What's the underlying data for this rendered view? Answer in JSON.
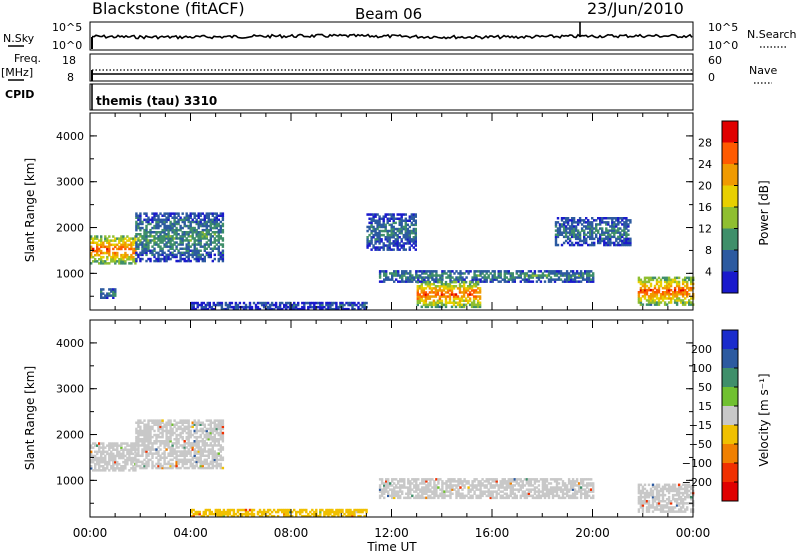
{
  "header": {
    "station": "Blackstone (fitACF)",
    "beam": "Beam 06",
    "date": "23/Jun/2010"
  },
  "status_panels": {
    "nsky_label": "N.Sky",
    "nsearch_label": "N.Search",
    "nsky_ticks": [
      "10^5",
      "10^0"
    ],
    "nsearch_ticks": [
      "10^5",
      "10^0"
    ],
    "freq_label": "Freq.",
    "freq_unit": "[MHz]",
    "freq_ticks": [
      "18",
      "8"
    ],
    "nave_label": "Nave",
    "nave_ticks": [
      "60",
      "0"
    ],
    "cpid_label": "CPID",
    "cpid_value": "themis (tau) 3310"
  },
  "power_colorbar": {
    "label": "Power [dB]",
    "ticks": [
      "28",
      "24",
      "20",
      "16",
      "12",
      "8",
      "4"
    ],
    "colors": [
      "#e00000",
      "#ff5a00",
      "#f09a00",
      "#e8d000",
      "#8fbf30",
      "#3f8f6a",
      "#2c5aa0",
      "#1a1acc"
    ]
  },
  "velocity_colorbar": {
    "label": "Velocity [m s⁻¹]",
    "ticks": [
      "200",
      "100",
      "50",
      "15",
      "−15",
      "−50",
      "−100",
      "−200"
    ],
    "colors": [
      "#1a2ccc",
      "#2c5aa0",
      "#3f8f6a",
      "#70c030",
      "#c8c8c8",
      "#f0c000",
      "#f08000",
      "#f03000",
      "#e00000"
    ]
  },
  "axes": {
    "ylabel": "Slant Range [km]",
    "yticks": [
      "4000",
      "3000",
      "2000",
      "1000"
    ],
    "xlabel": "Time UT",
    "xticks": [
      "00:00",
      "04:00",
      "08:00",
      "12:00",
      "16:00",
      "20:00",
      "00:00"
    ]
  },
  "chart_data": [
    {
      "type": "heatmap",
      "title": "Power",
      "xlabel": "Time UT",
      "ylabel": "Slant Range [km]",
      "xlim_hours": [
        0,
        24
      ],
      "ylim_km": [
        200,
        4500
      ],
      "colorbar_label": "Power [dB]",
      "colorbar_range": [
        0,
        31
      ],
      "echo_regions": [
        {
          "t_start": 0.0,
          "t_end": 1.8,
          "range_low": 1200,
          "range_high": 1800,
          "core_power_db": 26
        },
        {
          "t_start": 1.8,
          "t_end": 5.3,
          "range_low": 1250,
          "range_high": 2300,
          "core_power_db": 10
        },
        {
          "t_start": 0.4,
          "t_end": 1.0,
          "range_low": 450,
          "range_high": 650,
          "core_power_db": 8
        },
        {
          "t_start": 4.0,
          "t_end": 11.0,
          "range_low": 200,
          "range_high": 350,
          "core_power_db": 6
        },
        {
          "t_start": 11.5,
          "t_end": 20.0,
          "range_low": 800,
          "range_high": 1050,
          "core_power_db": 10
        },
        {
          "t_start": 13.0,
          "t_end": 15.5,
          "range_low": 250,
          "range_high": 800,
          "core_power_db": 26
        },
        {
          "t_start": 11.0,
          "t_end": 13.0,
          "range_low": 1500,
          "range_high": 2300,
          "core_power_db": 8
        },
        {
          "t_start": 18.5,
          "t_end": 21.5,
          "range_low": 1600,
          "range_high": 2200,
          "core_power_db": 8
        },
        {
          "t_start": 21.8,
          "t_end": 24.0,
          "range_low": 300,
          "range_high": 900,
          "core_power_db": 26
        }
      ]
    },
    {
      "type": "heatmap",
      "title": "Velocity",
      "xlabel": "Time UT",
      "ylabel": "Slant Range [km]",
      "xlim_hours": [
        0,
        24
      ],
      "ylim_km": [
        200,
        4500
      ],
      "colorbar_label": "Velocity [m s⁻¹]",
      "colorbar_range": [
        -250,
        250
      ],
      "echo_regions": [
        {
          "t_start": 0.0,
          "t_end": 1.8,
          "range_low": 1200,
          "range_high": 1800,
          "velocity": 0
        },
        {
          "t_start": 1.8,
          "t_end": 5.3,
          "range_low": 1250,
          "range_high": 2300,
          "velocity": 0
        },
        {
          "t_start": 4.0,
          "t_end": 11.0,
          "range_low": 200,
          "range_high": 350,
          "velocity": -30
        },
        {
          "t_start": 11.5,
          "t_end": 20.0,
          "range_low": 600,
          "range_high": 1050,
          "velocity": 0
        },
        {
          "t_start": 21.8,
          "t_end": 24.0,
          "range_low": 300,
          "range_high": 900,
          "velocity": 0
        }
      ]
    }
  ]
}
